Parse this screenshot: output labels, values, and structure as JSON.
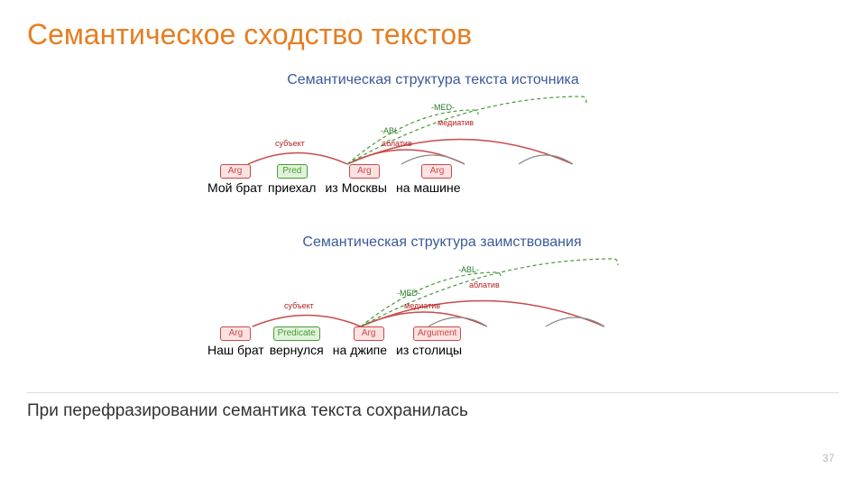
{
  "title": "Семантическое сходство текстов",
  "conclusion": "При перефразировании семантика текста сохранилась",
  "page_number": "37",
  "colors": {
    "title": "#e67e22",
    "diagram_title": "#3a5a9a",
    "red_role": "#b22222",
    "green_label": "#2a7a2a",
    "tag_arg_bg": "#fde2e2",
    "tag_arg_border": "#c94a4a",
    "tag_arg_text": "#c94a4a",
    "tag_pred_bg": "#e0f3da",
    "tag_pred_border": "#4a9a3a",
    "tag_pred_text": "#4a9a3a",
    "solid_arc": "#c94a4a",
    "dashed_arc": "#4a9a3a",
    "grey_arc": "#888888"
  },
  "diagram1": {
    "title": "Семантическая структура текста источника",
    "tokens": [
      {
        "tag": "Arg",
        "tag_type": "arg",
        "word": "Мой брат"
      },
      {
        "tag": "Pred",
        "tag_type": "pred",
        "word": "приехал"
      },
      {
        "tag": null,
        "tag_type": null,
        "word": "из"
      },
      {
        "tag": "Arg",
        "tag_type": "arg",
        "word": "Москвы"
      },
      {
        "tag": null,
        "tag_type": null,
        "word": "на"
      },
      {
        "tag": "Arg",
        "tag_type": "arg",
        "word": "машине"
      }
    ],
    "roles": [
      "субъект",
      "аблатив",
      "медиатив"
    ],
    "rel_labels": [
      "ABL",
      "MED"
    ]
  },
  "diagram2": {
    "title": "Семантическая структура заимствования",
    "tokens": [
      {
        "tag": "Arg",
        "tag_type": "arg",
        "word": "Наш брат"
      },
      {
        "tag": "Predicate",
        "tag_type": "pred",
        "word": "вернулся"
      },
      {
        "tag": null,
        "tag_type": null,
        "word": "на"
      },
      {
        "tag": "Arg",
        "tag_type": "arg",
        "word": "джипе"
      },
      {
        "tag": null,
        "tag_type": null,
        "word": "из"
      },
      {
        "tag": "Argument",
        "tag_type": "arg",
        "word": "столицы"
      }
    ],
    "roles": [
      "субъект",
      "медиатив",
      "аблатив"
    ],
    "rel_labels": [
      "MED",
      "ABL"
    ]
  }
}
